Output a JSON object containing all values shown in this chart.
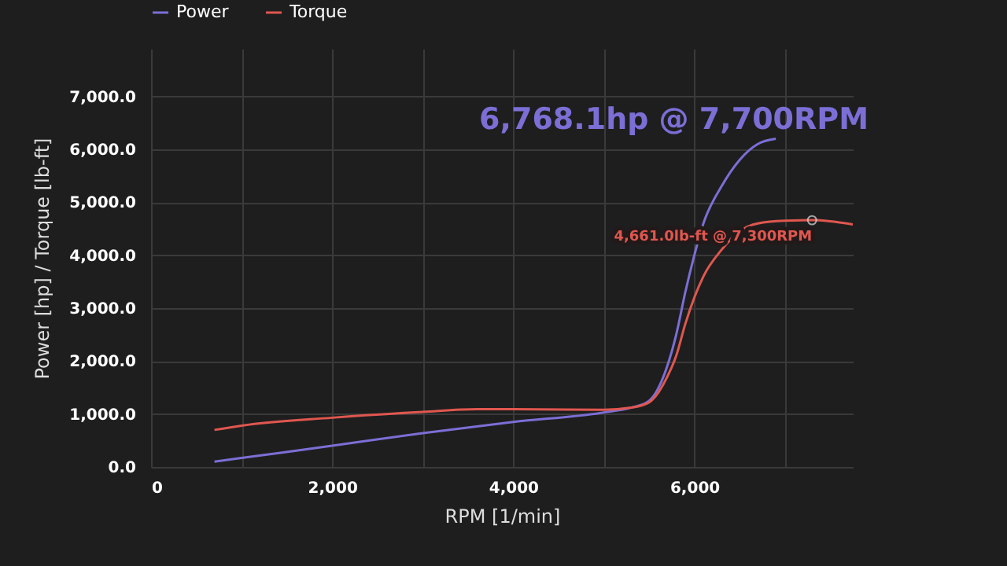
{
  "chart_data": {
    "type": "line",
    "xlabel": "RPM [1/min]",
    "ylabel": "Power [hp] / Torque [lb-ft]",
    "x": [
      700,
      1000,
      2000,
      3000,
      4000,
      5000,
      5300,
      5500,
      5700,
      5800,
      5900,
      6000,
      6100,
      6300,
      6500,
      6700,
      6900
    ],
    "series": [
      {
        "name": "Power",
        "color": "#7b6fd6",
        "values": [
          100,
          170,
          400,
          640,
          850,
          1030,
          1120,
          1250,
          1900,
          2500,
          3300,
          4000,
          4600,
          5300,
          5800,
          6100,
          6200
        ]
      },
      {
        "name": "Torque",
        "color": "#e0574f",
        "x": [
          700,
          1000,
          2000,
          3000,
          3600,
          4000,
          5000,
          5300,
          5500,
          5700,
          5800,
          5900,
          6000,
          6100,
          6300,
          6500,
          6700,
          7000,
          7300,
          7500,
          7750
        ],
        "values": [
          700,
          780,
          930,
          1040,
          1090,
          1090,
          1080,
          1120,
          1220,
          1700,
          2100,
          2700,
          3200,
          3600,
          4100,
          4450,
          4600,
          4650,
          4661,
          4640,
          4580
        ]
      }
    ],
    "xlim": [
      0,
      7750
    ],
    "xticks": [
      {
        "value": 0,
        "label": "0"
      },
      {
        "value": 1000,
        "label": null
      },
      {
        "value": 2000,
        "label": "2,000"
      },
      {
        "value": 3000,
        "label": null
      },
      {
        "value": 4000,
        "label": "4,000"
      },
      {
        "value": 5000,
        "label": null
      },
      {
        "value": 6000,
        "label": "6,000"
      },
      {
        "value": 7000,
        "label": null
      }
    ],
    "ylim": [
      0,
      7900
    ],
    "yticks": [
      {
        "value": 0,
        "label": "0.0"
      },
      {
        "value": 1000,
        "label": "1,000.0"
      },
      {
        "value": 2000,
        "label": "2,000.0"
      },
      {
        "value": 3000,
        "label": "3,000.0"
      },
      {
        "value": 4000,
        "label": "4,000.0"
      },
      {
        "value": 5000,
        "label": "5,000.0"
      },
      {
        "value": 6000,
        "label": "6,000.0"
      },
      {
        "value": 7000,
        "label": "7,000.0"
      }
    ],
    "annotations": [
      "6,768.1hp @ 7,700RPM",
      {
        "text": "4,661.0lb-ft @ 7,300RPM",
        "x": 7300,
        "y": 4661
      }
    ],
    "grid": true,
    "legend": "top",
    "marker": "none",
    "line_style": "solid"
  }
}
